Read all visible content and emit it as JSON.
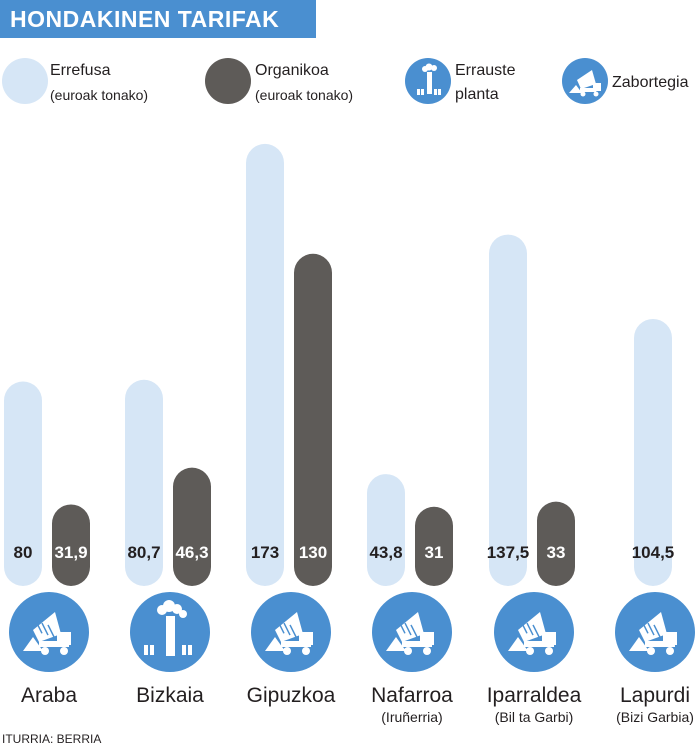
{
  "title": "HONDAKINEN TARIFAK",
  "legend": {
    "errefusa": {
      "label": "Errefusa",
      "unit": "(euroak tonako)",
      "color": "#d6e6f6"
    },
    "organikoa": {
      "label": "Organikoa",
      "unit": "(euroak tonako)",
      "color": "#5e5b58"
    },
    "errauste": {
      "label_line1": "Errauste",
      "label_line2": "planta",
      "icon": "incinerator-icon"
    },
    "zabortegia": {
      "label": "Zabortegia",
      "icon": "dump-truck-icon"
    }
  },
  "chart_data": {
    "type": "bar",
    "categories": [
      "Araba",
      "Bizkaia",
      "Gipuzkoa",
      "Nafarroa",
      "Iparraldea",
      "Lapurdi"
    ],
    "subtitles": [
      "",
      "",
      "",
      "(Iruñerria)",
      "(Bil ta Garbi)",
      "(Bizi Garbia)"
    ],
    "series": [
      {
        "name": "Errefusa",
        "values": [
          80,
          80.7,
          173,
          43.8,
          137.5,
          104.5
        ],
        "labels": [
          "80",
          "80,7",
          "173",
          "43,8",
          "137,5",
          "104,5"
        ]
      },
      {
        "name": "Organikoa",
        "values": [
          31.9,
          46.3,
          130,
          31,
          33,
          null
        ],
        "labels": [
          "31,9",
          "46,3",
          "130",
          "31",
          "33",
          ""
        ]
      }
    ],
    "facility": [
      "dump-truck-icon",
      "incinerator-icon",
      "dump-truck-icon",
      "dump-truck-icon",
      "dump-truck-icon",
      "dump-truck-icon"
    ],
    "ylim": [
      0,
      180
    ]
  },
  "source": "ITURRIA: BERRIA"
}
